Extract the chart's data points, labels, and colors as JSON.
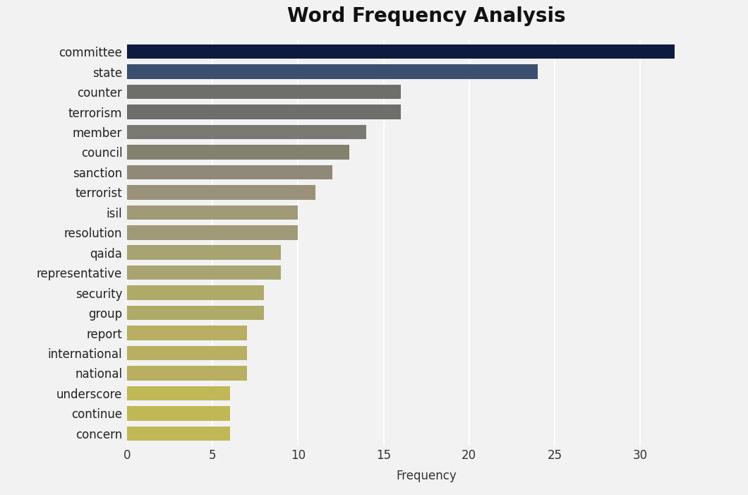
{
  "title": "Word Frequency Analysis",
  "categories": [
    "committee",
    "state",
    "counter",
    "terrorism",
    "member",
    "council",
    "sanction",
    "terrorist",
    "isil",
    "resolution",
    "qaida",
    "representative",
    "security",
    "group",
    "report",
    "international",
    "national",
    "underscore",
    "continue",
    "concern"
  ],
  "values": [
    32,
    24,
    16,
    16,
    14,
    13,
    12,
    11,
    10,
    10,
    9,
    9,
    8,
    8,
    7,
    7,
    7,
    6,
    6,
    6
  ],
  "bar_colors": [
    "#0d1b3e",
    "#3d4f6e",
    "#6e6e6a",
    "#6e6e6a",
    "#7a7a72",
    "#82826e",
    "#908878",
    "#9a9278",
    "#a09a78",
    "#a09a78",
    "#a8a472",
    "#a8a472",
    "#b0aa68",
    "#b0aa68",
    "#b8b060",
    "#b8b060",
    "#b8b060",
    "#c0b855",
    "#c0b855",
    "#c0b855"
  ],
  "xlabel": "Frequency",
  "xlim_max": 35,
  "xticks": [
    0,
    5,
    10,
    15,
    20,
    25,
    30
  ],
  "background_color": "#f2f2f2",
  "bar_gap_color": "#ffffff",
  "title_fontsize": 20,
  "label_fontsize": 12,
  "tick_fontsize": 12,
  "bar_height": 0.72
}
